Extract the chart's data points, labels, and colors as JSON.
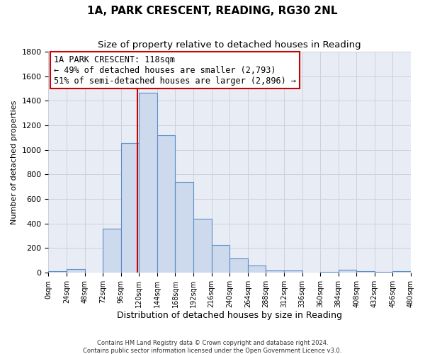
{
  "title": "1A, PARK CRESCENT, READING, RG30 2NL",
  "subtitle": "Size of property relative to detached houses in Reading",
  "xlabel": "Distribution of detached houses by size in Reading",
  "ylabel": "Number of detached properties",
  "bar_left_edges": [
    0,
    24,
    48,
    72,
    96,
    120,
    144,
    168,
    192,
    216,
    240,
    264,
    288,
    312,
    336,
    360,
    384,
    408,
    432,
    456
  ],
  "bar_heights": [
    10,
    30,
    0,
    355,
    1055,
    1465,
    1120,
    740,
    440,
    225,
    115,
    55,
    20,
    15,
    0,
    5,
    25,
    12,
    5,
    10
  ],
  "bin_width": 24,
  "bar_color": "#cdd9ec",
  "bar_edge_color": "#5b8dc8",
  "property_line_x": 118,
  "property_line_color": "#cc0000",
  "annotation_title": "1A PARK CRESCENT: 118sqm",
  "annotation_line1": "← 49% of detached houses are smaller (2,793)",
  "annotation_line2": "51% of semi-detached houses are larger (2,896) →",
  "annotation_box_color": "#ffffff",
  "annotation_box_edge_color": "#cc0000",
  "xlim": [
    0,
    480
  ],
  "ylim": [
    0,
    1800
  ],
  "yticks": [
    0,
    200,
    400,
    600,
    800,
    1000,
    1200,
    1400,
    1600,
    1800
  ],
  "xtick_labels": [
    "0sqm",
    "24sqm",
    "48sqm",
    "72sqm",
    "96sqm",
    "120sqm",
    "144sqm",
    "168sqm",
    "192sqm",
    "216sqm",
    "240sqm",
    "264sqm",
    "288sqm",
    "312sqm",
    "336sqm",
    "360sqm",
    "384sqm",
    "408sqm",
    "432sqm",
    "456sqm",
    "480sqm"
  ],
  "xtick_positions": [
    0,
    24,
    48,
    72,
    96,
    120,
    144,
    168,
    192,
    216,
    240,
    264,
    288,
    312,
    336,
    360,
    384,
    408,
    432,
    456,
    480
  ],
  "footer_line1": "Contains HM Land Registry data © Crown copyright and database right 2024.",
  "footer_line2": "Contains public sector information licensed under the Open Government Licence v3.0.",
  "grid_color": "#d0d0d8",
  "bg_color": "#ffffff",
  "ax_bg_color": "#e8edf5"
}
